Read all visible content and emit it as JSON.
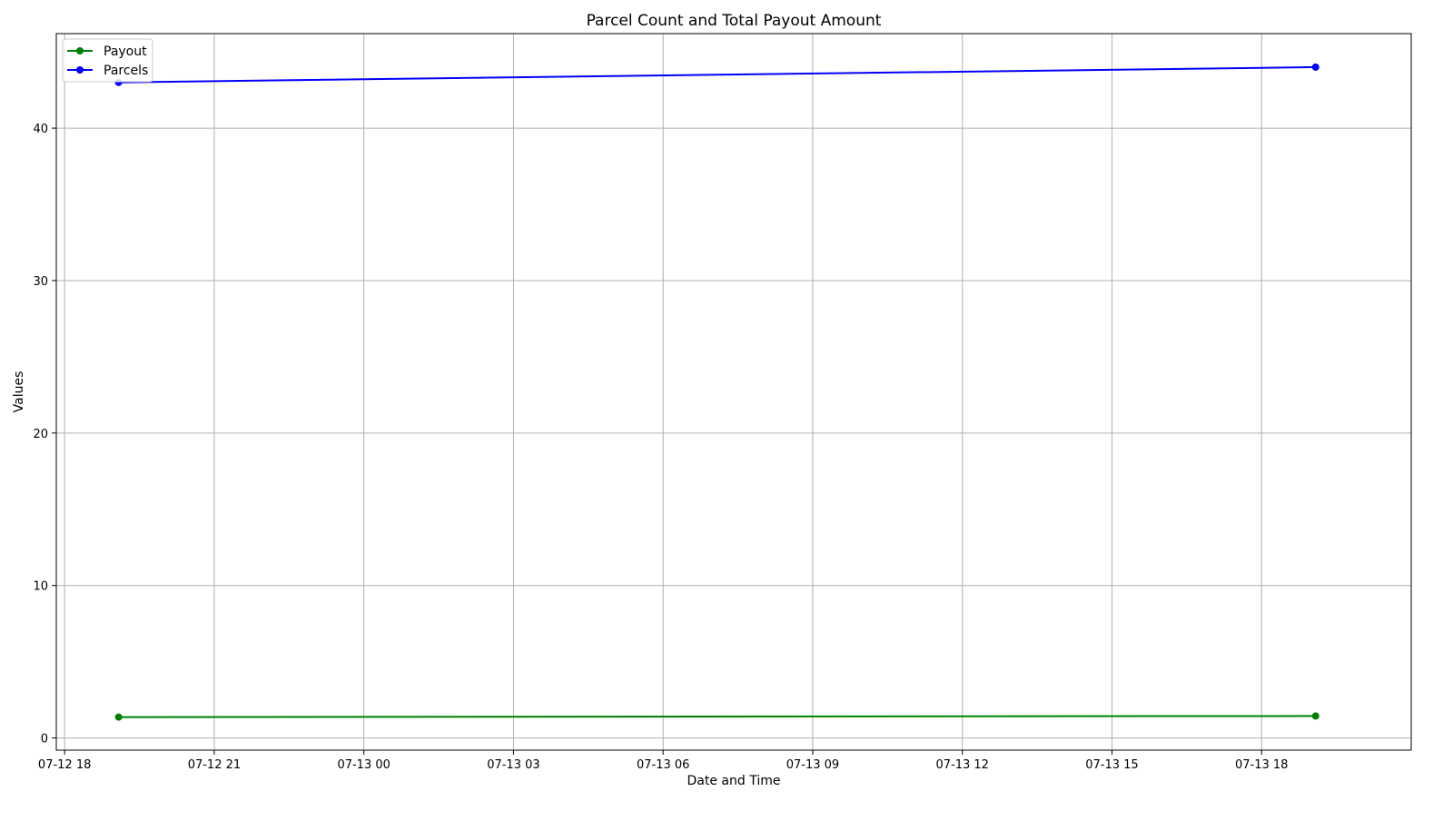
{
  "chart_data": {
    "type": "line",
    "title": "Parcel Count and Total Payout Amount",
    "xlabel": "Date and Time",
    "ylabel": "Values",
    "x_type": "datetime",
    "xlim": [
      "2024-07-12T17:50:00",
      "2024-07-13T21:00:00"
    ],
    "ylim": [
      -0.8,
      46.2
    ],
    "x_ticks": [
      {
        "value": "2024-07-12T18:00:00",
        "label": "07-12 18"
      },
      {
        "value": "2024-07-12T21:00:00",
        "label": "07-12 21"
      },
      {
        "value": "2024-07-13T00:00:00",
        "label": "07-13 00"
      },
      {
        "value": "2024-07-13T03:00:00",
        "label": "07-13 03"
      },
      {
        "value": "2024-07-13T06:00:00",
        "label": "07-13 06"
      },
      {
        "value": "2024-07-13T09:00:00",
        "label": "07-13 09"
      },
      {
        "value": "2024-07-13T12:00:00",
        "label": "07-13 12"
      },
      {
        "value": "2024-07-13T15:00:00",
        "label": "07-13 15"
      },
      {
        "value": "2024-07-13T18:00:00",
        "label": "07-13 18"
      }
    ],
    "y_ticks": [
      0,
      10,
      20,
      30,
      40
    ],
    "grid": true,
    "legend_position": "top-left",
    "series": [
      {
        "name": "Payout",
        "color": "#008000",
        "marker": "circle",
        "x": [
          "2024-07-12T19:05:00",
          "2024-07-13T19:05:00"
        ],
        "y": [
          1.37,
          1.44
        ]
      },
      {
        "name": "Parcels",
        "color": "#0000ff",
        "marker": "circle",
        "x": [
          "2024-07-12T19:05:00",
          "2024-07-13T19:05:00"
        ],
        "y": [
          43,
          44
        ]
      }
    ]
  }
}
